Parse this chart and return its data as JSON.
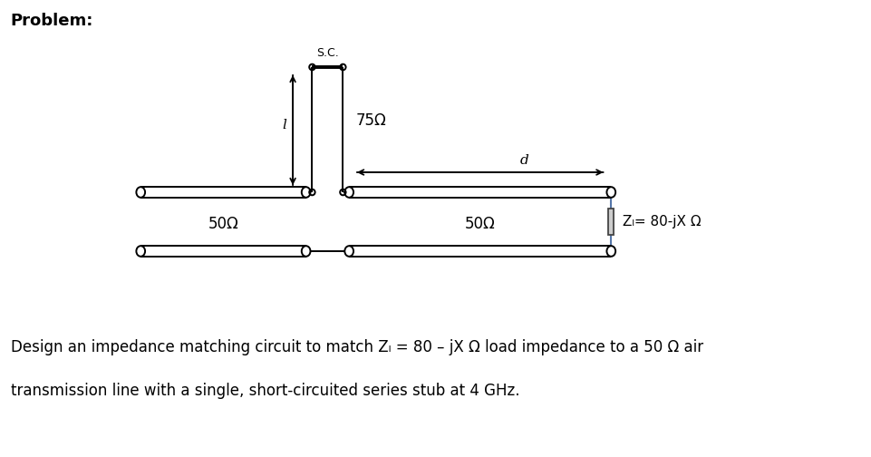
{
  "title": "Problem:",
  "title_fontsize": 13,
  "title_weight": "bold",
  "label_50ohm_left": "50Ω",
  "label_50ohm_right": "50Ω",
  "label_75ohm": "75Ω",
  "label_sc": "S.C.",
  "label_l": "l",
  "label_d": "d",
  "label_zl": "Zₗ= 80-jX Ω",
  "text_line1": "Design an impedance matching circuit to match Zₗ = 80 – jX Ω load impedance to a 50 Ω air",
  "text_line2": "transmission line with a single, short-circuited series stub at 4 GHz.",
  "text_fontsize": 12,
  "bg_color": "#ffffff",
  "line_color": "#000000"
}
